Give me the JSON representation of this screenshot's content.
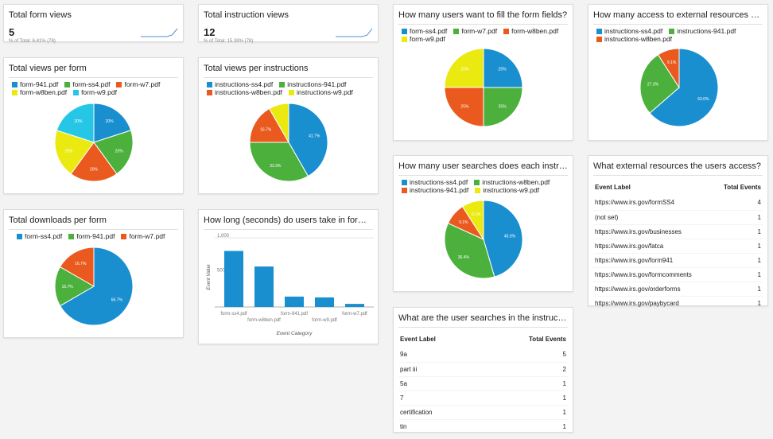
{
  "colors": {
    "blue": "#1a8fd0",
    "green": "#4cb03c",
    "orange": "#ea5a1f",
    "yellow": "#eaea10",
    "cyan": "#25c6e6"
  },
  "total_form_views": {
    "title": "Total form views",
    "value": "5",
    "subtitle": "% of Total: 6.41% (78)"
  },
  "total_instruction_views": {
    "title": "Total instruction views",
    "value": "12",
    "subtitle": "% of Total: 15.38% (78)"
  },
  "fill_fields": {
    "title": "How many users want to fill the form fields?"
  },
  "external_access": {
    "title": "How many access to external resources does every..."
  },
  "views_per_form": {
    "title": "Total views per form"
  },
  "views_per_instructions": {
    "title": "Total views per instructions"
  },
  "user_searches": {
    "title": "How many user searches does each instruction?"
  },
  "external_resources_table": {
    "title": "What external resources the users access?",
    "col_label": "Event Label",
    "col_value": "Total Events",
    "rows": [
      {
        "label": "https://www.irs.gov/formSS4",
        "value": "4"
      },
      {
        "label": "(not set)",
        "value": "1"
      },
      {
        "label": "https://www.irs.gov/businesses",
        "value": "1"
      },
      {
        "label": "https://www.irs.gov/fatca",
        "value": "1"
      },
      {
        "label": "https://www.irs.gov/form941",
        "value": "1"
      },
      {
        "label": "https://www.irs.gov/formcomments",
        "value": "1"
      },
      {
        "label": "https://www.irs.gov/orderforms",
        "value": "1"
      },
      {
        "label": "https://www.irs.gov/paybycard",
        "value": "1"
      }
    ]
  },
  "downloads_per_form": {
    "title": "Total downloads per form"
  },
  "time_in_forms": {
    "title": "How long (seconds) do users take in forms?"
  },
  "searches_table": {
    "title": "What are the user searches in the instructions?",
    "col_label": "Event Label",
    "col_value": "Total Events",
    "rows": [
      {
        "label": "9a",
        "value": "5"
      },
      {
        "label": "part iii",
        "value": "2"
      },
      {
        "label": "5a",
        "value": "1"
      },
      {
        "label": "7",
        "value": "1"
      },
      {
        "label": "certification",
        "value": "1"
      },
      {
        "label": "tin",
        "value": "1"
      }
    ]
  },
  "chart_data": [
    {
      "id": "fill_fields",
      "type": "pie",
      "title": "How many users want to fill the form fields?",
      "slices": [
        {
          "name": "form-ss4.pdf",
          "value": 25,
          "label": "25%",
          "color": "#1a8fd0"
        },
        {
          "name": "form-w7.pdf",
          "value": 25,
          "label": "25%",
          "color": "#4cb03c"
        },
        {
          "name": "form-w8ben.pdf",
          "value": 25,
          "label": "25%",
          "color": "#ea5a1f"
        },
        {
          "name": "form-w9.pdf",
          "value": 25,
          "label": "25%",
          "color": "#eaea10"
        }
      ],
      "legend": "top"
    },
    {
      "id": "external_access",
      "type": "pie",
      "title": "How many access to external resources does every...",
      "slices": [
        {
          "name": "instructions-ss4.pdf",
          "value": 63.6,
          "label": "63.6%",
          "color": "#1a8fd0"
        },
        {
          "name": "instructions-941.pdf",
          "value": 27.3,
          "label": "27.3%",
          "color": "#4cb03c"
        },
        {
          "name": "instructions-w8ben.pdf",
          "value": 9.1,
          "label": "9.1%",
          "color": "#ea5a1f"
        }
      ],
      "legend": "top"
    },
    {
      "id": "views_per_form",
      "type": "pie",
      "title": "Total views per form",
      "slices": [
        {
          "name": "form-941.pdf",
          "value": 20,
          "label": "20%",
          "color": "#1a8fd0"
        },
        {
          "name": "form-ss4.pdf",
          "value": 20,
          "label": "20%",
          "color": "#4cb03c"
        },
        {
          "name": "form-w7.pdf",
          "value": 20,
          "label": "20%",
          "color": "#ea5a1f"
        },
        {
          "name": "form-w8ben.pdf",
          "value": 20,
          "label": "20%",
          "color": "#eaea10"
        },
        {
          "name": "form-w9.pdf",
          "value": 20,
          "label": "20%",
          "color": "#25c6e6"
        }
      ],
      "legend": "top"
    },
    {
      "id": "views_per_instructions",
      "type": "pie",
      "title": "Total views per instructions",
      "slices": [
        {
          "name": "instructions-ss4.pdf",
          "value": 41.7,
          "label": "41.7%",
          "color": "#1a8fd0"
        },
        {
          "name": "instructions-941.pdf",
          "value": 33.3,
          "label": "33.3%",
          "color": "#4cb03c"
        },
        {
          "name": "instructions-w8ben.pdf",
          "value": 16.7,
          "label": "16.7%",
          "color": "#ea5a1f"
        },
        {
          "name": "instructions-w9.pdf",
          "value": 8.3,
          "label": "",
          "color": "#eaea10"
        }
      ],
      "legend": "top"
    },
    {
      "id": "user_searches",
      "type": "pie",
      "title": "How many user searches does each instruction?",
      "slices": [
        {
          "name": "instructions-ss4.pdf",
          "value": 45.5,
          "label": "45.5%",
          "color": "#1a8fd0"
        },
        {
          "name": "instructions-w8ben.pdf",
          "value": 36.4,
          "label": "36.4%",
          "color": "#4cb03c"
        },
        {
          "name": "instructions-941.pdf",
          "value": 9.1,
          "label": "9.1%",
          "color": "#ea5a1f"
        },
        {
          "name": "instructions-w9.pdf",
          "value": 9.1,
          "label": "9.1%",
          "color": "#eaea10"
        }
      ],
      "legend_order": [
        "instructions-ss4.pdf",
        "instructions-w8ben.pdf",
        "instructions-941.pdf",
        "instructions-w9.pdf"
      ],
      "legend": "top"
    },
    {
      "id": "downloads_per_form",
      "type": "pie",
      "title": "Total downloads per form",
      "slices": [
        {
          "name": "form-ss4.pdf",
          "value": 66.7,
          "label": "66.7%",
          "color": "#1a8fd0"
        },
        {
          "name": "form-941.pdf",
          "value": 16.7,
          "label": "16.7%",
          "color": "#4cb03c"
        },
        {
          "name": "form-w7.pdf",
          "value": 16.7,
          "label": "16.7%",
          "color": "#ea5a1f"
        }
      ],
      "legend": "top"
    },
    {
      "id": "time_in_forms",
      "type": "bar",
      "title": "How long (seconds) do users take in forms?",
      "categories": [
        "form-ss4.pdf",
        "form-w8ben.pdf",
        "form-941.pdf",
        "form-w9.pdf",
        "form-w7.pdf"
      ],
      "values": [
        810,
        585,
        150,
        138,
        45
      ],
      "xlabel": "Event Category",
      "ylabel": "Event Value",
      "yticks": [
        {
          "value": 1000,
          "label": "1,000"
        },
        {
          "value": 500,
          "label": "500"
        }
      ],
      "ylim": [
        0,
        1000
      ],
      "color": "#1a8fd0"
    },
    {
      "id": "spark_forms",
      "type": "line",
      "values": [
        0,
        0,
        0,
        0,
        0,
        0,
        1,
        5
      ]
    },
    {
      "id": "spark_instructions",
      "type": "line",
      "values": [
        0,
        0,
        0,
        0,
        0,
        0,
        2,
        12
      ]
    }
  ]
}
